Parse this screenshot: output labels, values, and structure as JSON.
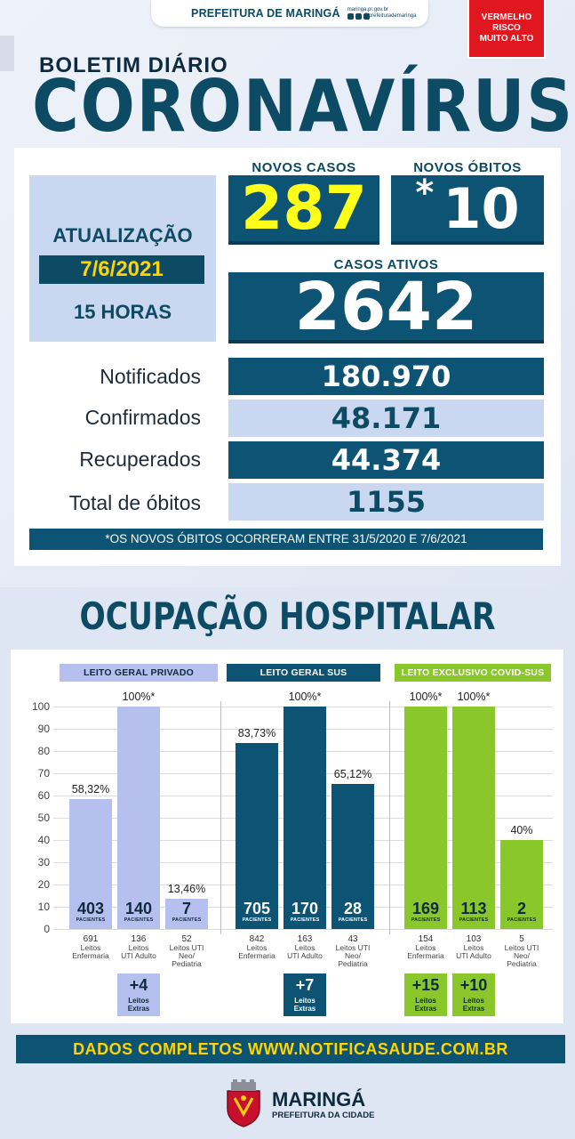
{
  "header": {
    "brand": "PREFEITURA DE MARINGÁ",
    "site": "maringa.pr.gov.br",
    "social": "@prefeiturademaringa"
  },
  "risk": {
    "line1": "VERMELHO",
    "line2": "RISCO",
    "line3": "MUITO ALTO",
    "color": "#e0171e"
  },
  "title": {
    "small": "BOLETIM DIÁRIO",
    "big": "CORONAVÍRUS"
  },
  "update": {
    "label": "ATUALIZAÇÃO",
    "date": "7/6/2021",
    "hour": "15 HORAS"
  },
  "kpis": {
    "new_cases_label": "NOVOS CASOS",
    "new_cases": "287",
    "new_deaths_label": "NOVOS ÓBITOS",
    "new_deaths_mark": "*",
    "new_deaths": "10",
    "active_label": "CASOS ATIVOS",
    "active": "2642"
  },
  "totals": [
    {
      "label": "Notificados",
      "value": "180.970"
    },
    {
      "label": "Confirmados",
      "value": "48.171"
    },
    {
      "label": "Recuperados",
      "value": "44.374"
    },
    {
      "label": "Total de óbitos",
      "value": "1155"
    }
  ],
  "note": "*OS NOVOS ÓBITOS OCORRERAM ENTRE 31/5/2020 E 7/6/2021",
  "section_title": "OCUPAÇÃO HOSPITALAR",
  "chart_data": {
    "type": "bar",
    "ylim": [
      0,
      100
    ],
    "yticks": [
      "100",
      "90",
      "80",
      "70",
      "60",
      "50",
      "40",
      "30",
      "20",
      "10",
      "0"
    ],
    "groups": [
      {
        "name": "LEITO GERAL PRIVADO",
        "color": "#b6c0ee",
        "text_color": "#0d2a3e",
        "bars": [
          {
            "value": 58.32,
            "pct_label": "58,32%",
            "patients": "403",
            "beds": "691",
            "bed_label": [
              "Leitos",
              "Enfermaria"
            ]
          },
          {
            "value": 100,
            "pct_label": "100%*",
            "patients": "140",
            "beds": "136",
            "bed_label": [
              "Leitos",
              "UTI Adulto"
            ]
          },
          {
            "value": 13.46,
            "pct_label": "13,46%",
            "patients": "7",
            "beds": "52",
            "bed_label": [
              "Leitos UTI",
              "Neo/",
              "Pediatria"
            ]
          }
        ],
        "extra": {
          "value": "+4",
          "label": [
            "Leitos",
            "Extras"
          ]
        }
      },
      {
        "name": "LEITO GERAL SUS",
        "color": "#0d5474",
        "text_color": "#ffffff",
        "bars": [
          {
            "value": 83.73,
            "pct_label": "83,73%",
            "patients": "705",
            "beds": "842",
            "bed_label": [
              "Leitos",
              "Enfermaria"
            ]
          },
          {
            "value": 100,
            "pct_label": "100%*",
            "patients": "170",
            "beds": "163",
            "bed_label": [
              "Leitos",
              "UTI Adulto"
            ]
          },
          {
            "value": 65.12,
            "pct_label": "65,12%",
            "patients": "28",
            "beds": "43",
            "bed_label": [
              "Leitos UTI",
              "Neo/",
              "Pediatria"
            ]
          }
        ],
        "extra": {
          "value": "+7",
          "label": [
            "Leitos",
            "Extras"
          ]
        }
      },
      {
        "name": "LEITO EXCLUSIVO COVID-SUS",
        "color": "#8ac72a",
        "text_color": "#0d2a3e",
        "bars": [
          {
            "value": 100,
            "pct_label": "100%*",
            "patients": "169",
            "beds": "154",
            "bed_label": [
              "Leitos",
              "Enfermaria"
            ]
          },
          {
            "value": 100,
            "pct_label": "100%*",
            "patients": "113",
            "beds": "103",
            "bed_label": [
              "Leitos",
              "UTI Adulto"
            ]
          },
          {
            "value": 40,
            "pct_label": "40%",
            "patients": "2",
            "beds": "5",
            "bed_label": [
              "Leitos UTI",
              "Neo/",
              "Pediatria"
            ]
          }
        ],
        "extras": [
          {
            "value": "+15",
            "label": [
              "Leitos",
              "Extras"
            ]
          },
          {
            "value": "+10",
            "label": [
              "Leitos",
              "Extras"
            ]
          }
        ]
      }
    ],
    "patients_label": "PACIENTES"
  },
  "footer": "DADOS COMPLETOS  WWW.NOTIFICASAUDE.COM.BR",
  "logo": {
    "city": "MARINGÁ",
    "sub": "PREFEITURA DA CIDADE"
  }
}
